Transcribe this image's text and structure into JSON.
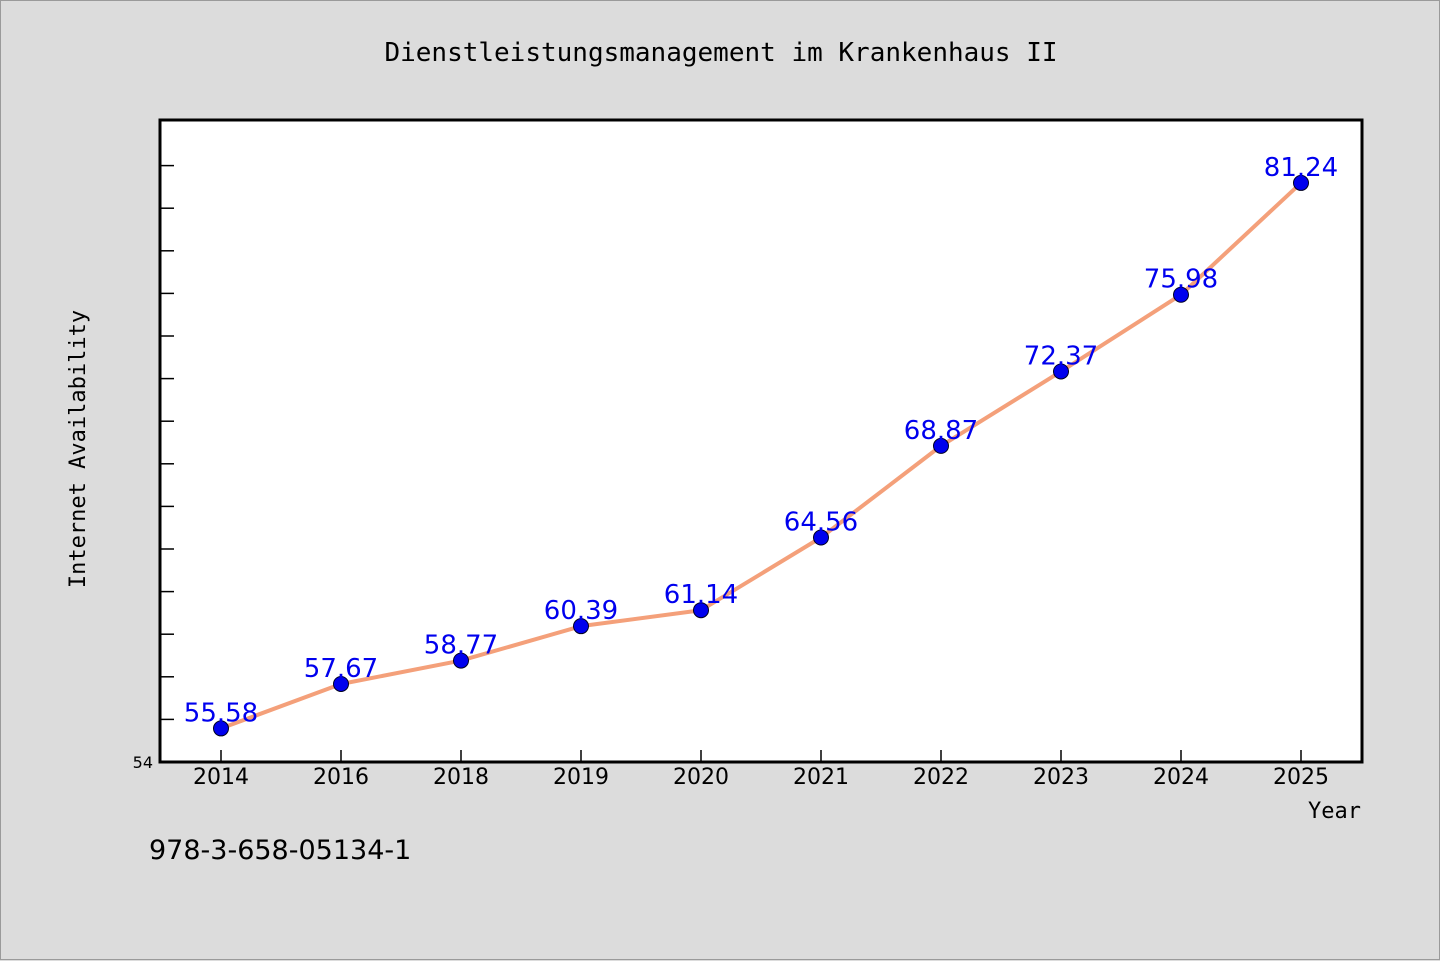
{
  "chart_data": {
    "type": "line",
    "title": "Dienstleistungsmanagement im Krankenhaus II",
    "xlabel": "Year",
    "ylabel": "Internet Availability",
    "categories": [
      "2014",
      "2016",
      "2018",
      "2019",
      "2020",
      "2021",
      "2022",
      "2023",
      "2024",
      "2025"
    ],
    "series": [
      {
        "values": [
          55.58,
          57.67,
          58.77,
          60.39,
          61.14,
          64.56,
          68.87,
          72.37,
          75.98,
          81.24
        ],
        "labels": [
          "55.58",
          "57.67",
          "58.77",
          "60.39",
          "61.14",
          "64.56",
          "68.87",
          "72.37",
          "75.98",
          "81.24"
        ],
        "line_color": "#f4a07a",
        "marker_color": "#0000ee",
        "label_color": "#0000ee"
      }
    ],
    "ylim": [
      54,
      84.2
    ],
    "yticks_labeled": [
      "54"
    ],
    "grid": false,
    "legend": "none"
  },
  "footer": {
    "isbn": "978-3-658-05134-1"
  }
}
